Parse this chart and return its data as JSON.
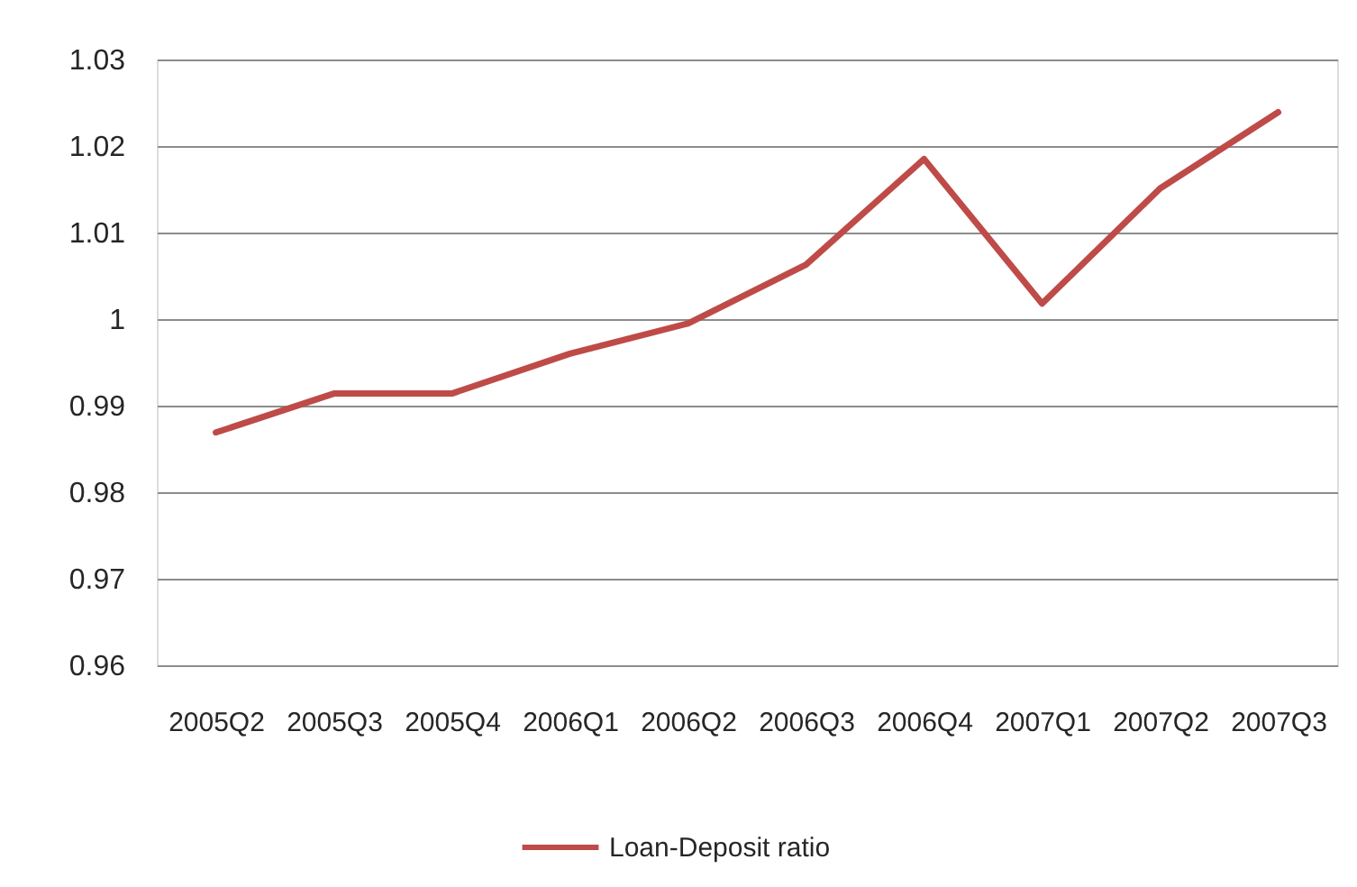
{
  "chart_data": {
    "type": "line",
    "categories": [
      "2005Q2",
      "2005Q3",
      "2005Q4",
      "2006Q1",
      "2006Q2",
      "2006Q3",
      "2006Q4",
      "2007Q1",
      "2007Q2",
      "2007Q3"
    ],
    "series": [
      {
        "name": "Loan-Deposit ratio",
        "color": "#be4b48",
        "values": [
          0.9869,
          0.9914,
          0.9914,
          0.996,
          0.9995,
          1.0063,
          1.0185,
          1.0018,
          1.0151,
          1.0239
        ]
      }
    ],
    "ylim": [
      0.96,
      1.03
    ],
    "yticks": [
      0.96,
      0.97,
      0.98,
      0.99,
      1,
      1.01,
      1.02,
      1.03
    ],
    "grid": "y",
    "legend": "bottom",
    "line_style": "solid"
  }
}
